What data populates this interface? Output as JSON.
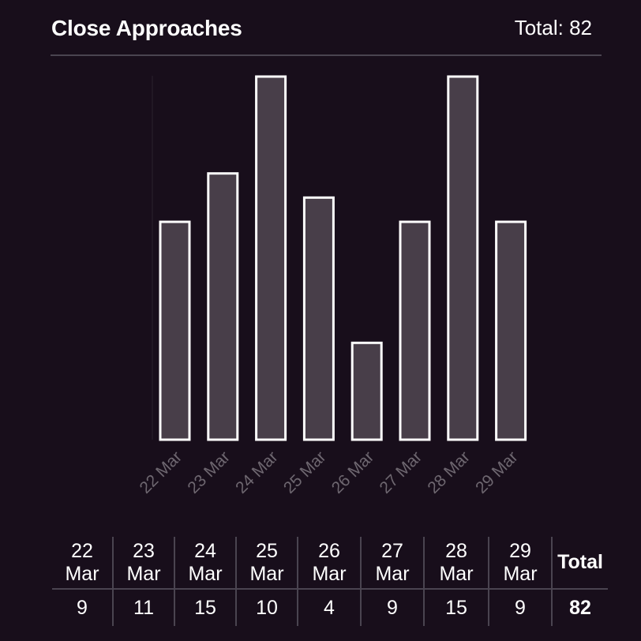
{
  "header": {
    "title": "Close Approaches",
    "total_label": "Total: 82"
  },
  "chart_data": {
    "type": "bar",
    "title": "Close Approaches",
    "categories": [
      "22 Mar",
      "23 Mar",
      "24 Mar",
      "25 Mar",
      "26 Mar",
      "27 Mar",
      "28 Mar",
      "29 Mar"
    ],
    "values": [
      9,
      11,
      15,
      10,
      4,
      9,
      15,
      9
    ],
    "xlabel": "",
    "ylabel": "",
    "ylim": [
      0,
      15
    ],
    "grid": false,
    "colors": {
      "bar_fill": "#483e49",
      "bar_stroke": "#ffffff",
      "background": "#180e1b"
    }
  },
  "table": {
    "dates": [
      {
        "day": "22",
        "month": "Mar"
      },
      {
        "day": "23",
        "month": "Mar"
      },
      {
        "day": "24",
        "month": "Mar"
      },
      {
        "day": "25",
        "month": "Mar"
      },
      {
        "day": "26",
        "month": "Mar"
      },
      {
        "day": "27",
        "month": "Mar"
      },
      {
        "day": "28",
        "month": "Mar"
      },
      {
        "day": "29",
        "month": "Mar"
      }
    ],
    "counts": [
      "9",
      "11",
      "15",
      "10",
      "4",
      "9",
      "15",
      "9"
    ],
    "total_header": "Total",
    "total_value": "82"
  }
}
